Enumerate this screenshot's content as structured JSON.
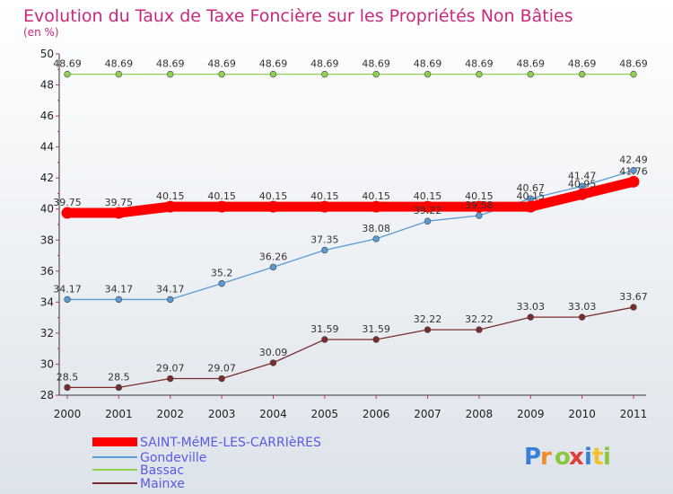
{
  "chart_data": {
    "type": "line",
    "title": "Evolution du Taux de Taxe Foncière sur les Propriétés Non Bâties",
    "subtitle": "(en %)",
    "xlabel": "",
    "ylabel": "",
    "ylim": [
      28,
      50
    ],
    "yticks": [
      28,
      30,
      32,
      34,
      36,
      38,
      40,
      42,
      44,
      46,
      48,
      50
    ],
    "categories": [
      "2000",
      "2001",
      "2002",
      "2003",
      "2004",
      "2005",
      "2006",
      "2007",
      "2008",
      "2009",
      "2010",
      "2011"
    ],
    "series": [
      {
        "name": "SAINT-MéME-LES-CARRIèRES",
        "color": "#ff0000",
        "values": [
          39.75,
          39.75,
          40.15,
          40.15,
          40.15,
          40.15,
          40.15,
          40.15,
          40.15,
          40.15,
          40.95,
          41.76
        ],
        "labels": [
          "39.75",
          "39.75",
          "40.15",
          "40.15",
          "40.15",
          "40.15",
          "40.15",
          "40.15",
          "40.15",
          "40.15",
          "40.95",
          "41.76"
        ]
      },
      {
        "name": "Gondeville",
        "color": "#5b9bd5",
        "values": [
          34.17,
          34.17,
          34.17,
          35.2,
          36.26,
          37.35,
          38.08,
          39.22,
          39.58,
          40.67,
          41.47,
          42.49
        ],
        "labels": [
          "34.17",
          "34.17",
          "34.17",
          "35.2",
          "36.26",
          "37.35",
          "38.08",
          "39.22",
          "39.58",
          "40.67",
          "41.47",
          "42.49"
        ]
      },
      {
        "name": "Bassac",
        "color": "#8fd14f",
        "values": [
          48.69,
          48.69,
          48.69,
          48.69,
          48.69,
          48.69,
          48.69,
          48.69,
          48.69,
          48.69,
          48.69,
          48.69
        ],
        "labels": [
          "48.69",
          "48.69",
          "48.69",
          "48.69",
          "48.69",
          "48.69",
          "48.69",
          "48.69",
          "48.69",
          "48.69",
          "48.69",
          "48.69"
        ]
      },
      {
        "name": "Mainxe",
        "color": "#7b2d2d",
        "values": [
          28.5,
          28.5,
          29.07,
          29.07,
          30.09,
          31.59,
          31.59,
          32.22,
          32.22,
          33.03,
          33.03,
          33.67
        ],
        "labels": [
          "28.5",
          "28.5",
          "29.07",
          "29.07",
          "30.09",
          "31.59",
          "31.59",
          "32.22",
          "32.22",
          "33.03",
          "33.03",
          "33.67"
        ]
      }
    ],
    "legend_position": "bottom-left",
    "grid": false
  },
  "logo": {
    "letters": [
      "P",
      "r",
      "o",
      "x",
      "i",
      "t",
      "i"
    ],
    "colors": [
      "#3a7fd5",
      "#f28c28",
      "#8cc63f",
      "#e23d3d",
      "#3a7fd5",
      "#f2c028",
      "#8cc63f"
    ]
  }
}
